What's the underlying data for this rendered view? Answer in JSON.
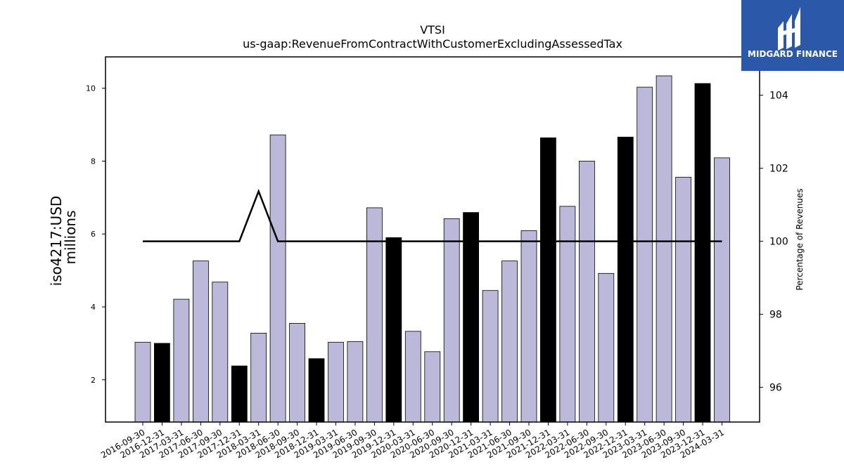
{
  "logo": {
    "text": "MIDGARD FINANCE",
    "background": "#2b58a8"
  },
  "chart_data": {
    "type": "bar",
    "title": "VTSI",
    "subtitle": "us-gaap:RevenueFromContractWithCustomerExcludingAssessedTax",
    "ylabel": [
      "iso4217:USD",
      "millions"
    ],
    "y2label": "Percentage of Revenues",
    "categories": [
      "2016-09-30",
      "2016-12-31",
      "2017-03-31",
      "2017-06-30",
      "2017-09-30",
      "2017-12-31",
      "2018-03-31",
      "2018-06-30",
      "2018-09-30",
      "2018-12-31",
      "2019-03-31",
      "2019-06-30",
      "2019-09-30",
      "2019-12-31",
      "2020-03-31",
      "2020-06-30",
      "2020-09-30",
      "2020-12-31",
      "2021-03-31",
      "2021-06-30",
      "2021-09-30",
      "2021-12-31",
      "2022-03-31",
      "2022-06-30",
      "2022-09-30",
      "2022-12-31",
      "2023-03-31",
      "2023-06-30",
      "2023-09-30",
      "2023-12-31",
      "2024-03-31"
    ],
    "values": [
      3.03,
      3.0,
      4.21,
      5.26,
      4.68,
      2.38,
      3.28,
      8.72,
      3.55,
      2.58,
      3.03,
      3.05,
      6.72,
      5.9,
      3.33,
      2.77,
      6.42,
      6.59,
      4.45,
      5.26,
      6.09,
      8.64,
      6.76,
      8.0,
      4.92,
      8.66,
      10.03,
      10.34,
      7.56,
      10.13,
      8.09
    ],
    "bar_colors": [
      "#bcb8d9",
      "#000000",
      "#bcb8d9",
      "#bcb8d9",
      "#bcb8d9",
      "#000000",
      "#bcb8d9",
      "#bcb8d9",
      "#bcb8d9",
      "#000000",
      "#bcb8d9",
      "#bcb8d9",
      "#bcb8d9",
      "#000000",
      "#bcb8d9",
      "#bcb8d9",
      "#bcb8d9",
      "#000000",
      "#bcb8d9",
      "#bcb8d9",
      "#bcb8d9",
      "#000000",
      "#bcb8d9",
      "#bcb8d9",
      "#bcb8d9",
      "#000000",
      "#bcb8d9",
      "#bcb8d9",
      "#bcb8d9",
      "#000000",
      "#bcb8d9"
    ],
    "line_values": [
      100,
      100,
      100,
      100,
      100,
      100,
      101.37,
      100,
      100,
      100,
      100,
      100,
      100,
      100,
      100,
      100,
      100,
      100,
      100,
      100,
      100,
      100,
      100,
      100,
      100,
      100,
      100,
      100,
      100,
      100,
      100
    ],
    "ylim": [
      0.84,
      10.86
    ],
    "y2lim": [
      95.05,
      105.05
    ],
    "yticks": [
      2,
      4,
      6,
      8,
      10
    ],
    "y2ticks": [
      96,
      98,
      100,
      102,
      104
    ],
    "grid": false
  }
}
